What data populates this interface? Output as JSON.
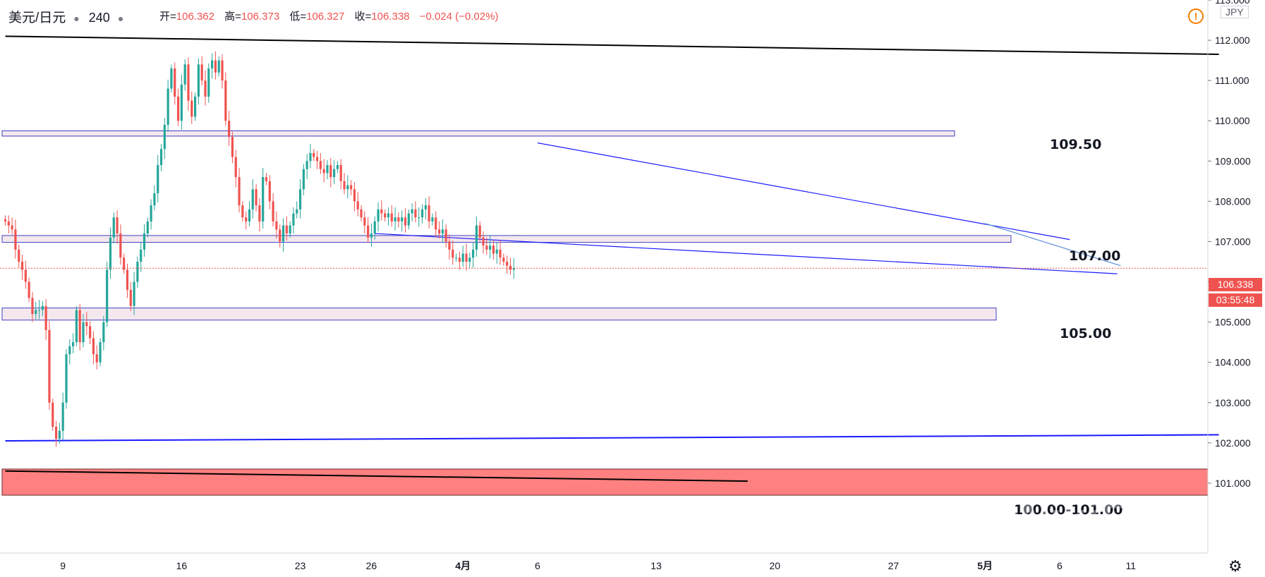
{
  "header": {
    "symbol": "美元/日元",
    "interval": "240",
    "open_label": "开=",
    "open_value": "106.362",
    "high_label": "高=",
    "high_value": "106.373",
    "low_label": "低=",
    "low_value": "106.327",
    "close_label": "收=",
    "close_value": "106.338",
    "change": "−0.024 (−0.02%)"
  },
  "price_scale": {
    "currency": "JPY",
    "current_price": "106.338",
    "countdown": "03:55:48"
  },
  "level_labels": {
    "l1": "109.50",
    "l2": "107.00",
    "l3": "105.00",
    "l4": "100.00-101.00"
  },
  "watermark": "WikiFX",
  "colors": {
    "up": "#26a69a",
    "down": "#ef5350",
    "trend_blue": "#1a1aff",
    "zone_fill": "#f4e8ee",
    "zone_border": "#4040c0",
    "support_zone": "#ff8080",
    "price_tag": "#ef5350"
  },
  "chart_data": {
    "type": "candlestick",
    "instrument": "USD/JPY",
    "timeframe": "240",
    "ylim": [
      100.0,
      113.0
    ],
    "y_ticks": [
      "113.000",
      "112.000",
      "111.000",
      "110.000",
      "109.000",
      "108.000",
      "107.000",
      "106.000",
      "105.000",
      "104.000",
      "103.000",
      "102.000",
      "101.000"
    ],
    "x_ticks": [
      {
        "label": "9",
        "bar": 17
      },
      {
        "label": "16",
        "bar": 52
      },
      {
        "label": "23",
        "bar": 87
      },
      {
        "label": "26",
        "bar": 108
      },
      {
        "label": "4月",
        "bar": 135
      },
      {
        "label": "6",
        "bar": 157
      },
      {
        "label": "13",
        "bar": 192
      },
      {
        "label": "20",
        "bar": 227
      },
      {
        "label": "27",
        "bar": 262
      },
      {
        "label": "5月",
        "bar": 289
      },
      {
        "label": "6",
        "bar": 311
      },
      {
        "label": "11",
        "bar": 332
      }
    ],
    "close_series": [
      107.5,
      107.4,
      107.3,
      106.8,
      106.5,
      106.3,
      106.0,
      105.6,
      105.2,
      105.3,
      105.3,
      105.4,
      104.8,
      103.0,
      102.4,
      102.1,
      102.3,
      103.0,
      104.2,
      104.4,
      104.5,
      105.3,
      104.5,
      105.0,
      104.9,
      104.6,
      104.2,
      104.0,
      104.5,
      105.0,
      106.3,
      107.1,
      107.6,
      107.2,
      106.6,
      106.3,
      105.8,
      105.4,
      106.0,
      106.5,
      106.8,
      107.2,
      107.5,
      107.9,
      108.2,
      108.9,
      109.3,
      109.9,
      110.8,
      111.3,
      110.6,
      110.0,
      110.9,
      111.4,
      110.5,
      110.1,
      110.6,
      111.4,
      111.0,
      110.6,
      111.3,
      111.5,
      111.2,
      111.5,
      111.0,
      110.0,
      109.6,
      109.1,
      108.6,
      107.9,
      107.6,
      107.5,
      107.8,
      108.3,
      107.9,
      107.5,
      108.6,
      108.5,
      108.0,
      107.5,
      107.3,
      107.0,
      107.4,
      107.2,
      107.4,
      107.7,
      107.8,
      108.3,
      108.8,
      109.0,
      109.2,
      109.1,
      109.0,
      108.8,
      108.7,
      108.9,
      108.6,
      108.8,
      108.9,
      108.5,
      108.3,
      108.4,
      108.3,
      108.0,
      107.8,
      107.6,
      107.4,
      107.1,
      107.2,
      107.5,
      107.8,
      107.7,
      107.6,
      107.7,
      107.5,
      107.6,
      107.5,
      107.6,
      107.4,
      107.7,
      107.8,
      107.6,
      107.6,
      107.8,
      107.9,
      107.5,
      107.6,
      107.3,
      107.2,
      107.3,
      107.0,
      106.8,
      106.6,
      106.6,
      106.5,
      106.7,
      106.5,
      106.6,
      106.8,
      107.4,
      107.1,
      106.9,
      106.8,
      106.9,
      106.7,
      106.8,
      106.6,
      106.5,
      106.4,
      106.3,
      106.338
    ],
    "horizontal_zones": [
      {
        "top": 109.75,
        "bottom": 109.62,
        "label": "109.50"
      },
      {
        "top": 107.15,
        "bottom": 106.98,
        "label": "107.00"
      },
      {
        "top": 105.35,
        "bottom": 105.05,
        "label": "105.00"
      },
      {
        "top": 101.35,
        "bottom": 100.7,
        "label": "100.00-101.00"
      }
    ],
    "trendlines": [
      {
        "from_bar": 0,
        "from_price": 112.1,
        "to_bar": 358,
        "to_price": 111.65,
        "color": "black"
      },
      {
        "from_bar": 0,
        "from_price": 102.05,
        "to_bar": 358,
        "to_price": 102.2,
        "color": "blue"
      },
      {
        "from_bar": 0,
        "from_price": 101.3,
        "to_bar": 219,
        "to_price": 101.05,
        "color": "black"
      },
      {
        "from_bar": 157,
        "from_price": 109.45,
        "to_bar": 314,
        "to_price": 107.05,
        "color": "blue"
      },
      {
        "from_bar": 109,
        "from_price": 107.2,
        "to_bar": 328,
        "to_price": 106.2,
        "color": "blue"
      },
      {
        "from_bar": 289,
        "from_price": 107.45,
        "to_bar": 329,
        "to_price": 106.4,
        "color": "lightblue"
      }
    ],
    "last_price": 106.338,
    "grid": false
  }
}
